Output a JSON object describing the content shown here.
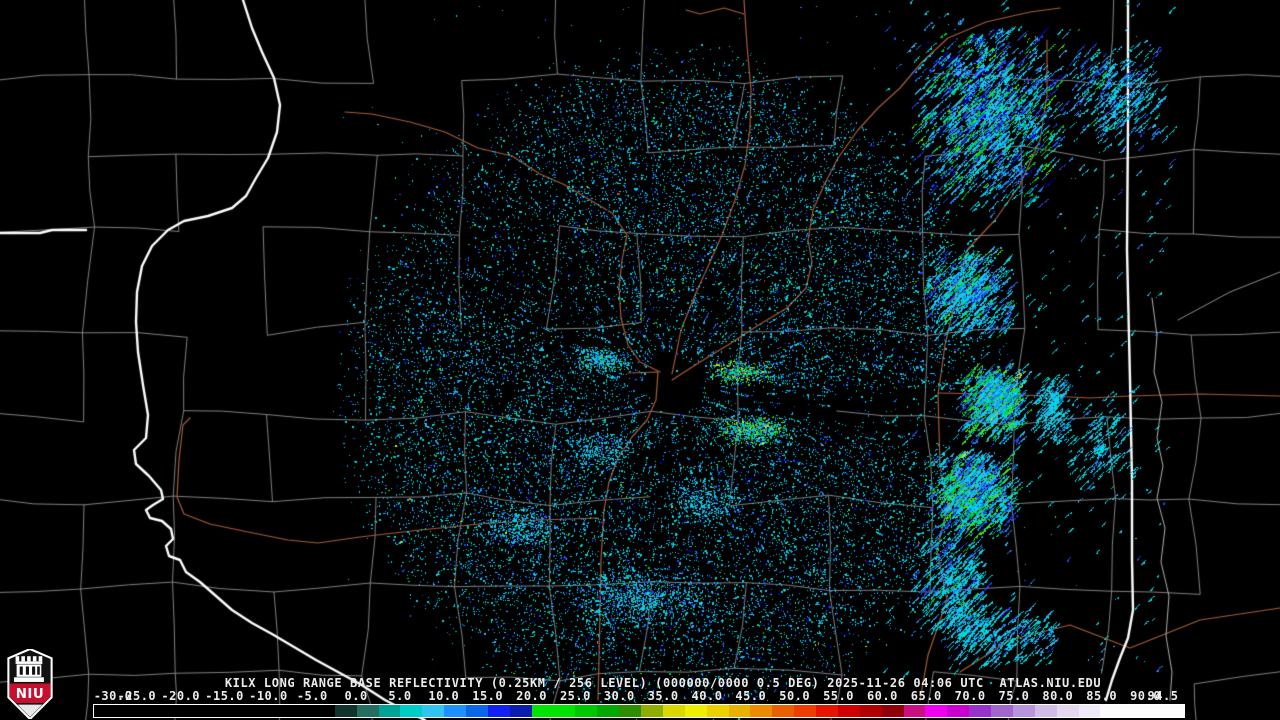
{
  "title_bar": {
    "full_text": "KILX LONG RANGE BASE REFLECTIVITY (0.25KM / 256 LEVEL) (000000/0000 0.5 DEG) 2025-11-26 04:06 UTC  ATLAS.NIU.EDU",
    "radar_id": "KILX",
    "product": "LONG RANGE BASE REFLECTIVITY",
    "resolution": "(0.25KM / 256 LEVEL)",
    "scan": "(000000/0000 0.5 DEG)",
    "timestamp": "2025-11-26 04:06 UTC",
    "source": "ATLAS.NIU.EDU"
  },
  "colorbar": {
    "min": -30,
    "max": 94.5,
    "ticks": [
      {
        "label": "-30.0",
        "value": -30
      },
      {
        "label": "-25.0",
        "value": -25
      },
      {
        "label": "-20.0",
        "value": -20
      },
      {
        "label": "-15.0",
        "value": -15
      },
      {
        "label": "-10.0",
        "value": -10
      },
      {
        "label": "-5.0",
        "value": -5
      },
      {
        "label": "0.0",
        "value": 0
      },
      {
        "label": "5.0",
        "value": 5
      },
      {
        "label": "10.0",
        "value": 10
      },
      {
        "label": "15.0",
        "value": 15
      },
      {
        "label": "20.0",
        "value": 20
      },
      {
        "label": "25.0",
        "value": 25
      },
      {
        "label": "30.0",
        "value": 30
      },
      {
        "label": "35.0",
        "value": 35
      },
      {
        "label": "40.0",
        "value": 40
      },
      {
        "label": "45.0",
        "value": 45
      },
      {
        "label": "50.0",
        "value": 50
      },
      {
        "label": "55.0",
        "value": 55
      },
      {
        "label": "60.0",
        "value": 60
      },
      {
        "label": "65.0",
        "value": 65
      },
      {
        "label": "70.0",
        "value": 70
      },
      {
        "label": "75.0",
        "value": 75
      },
      {
        "label": "80.0",
        "value": 80
      },
      {
        "label": "85.0",
        "value": 85
      },
      {
        "label": "90.0",
        "value": 90
      },
      {
        "label": "94.5",
        "value": 94.5
      }
    ],
    "segments": [
      {
        "from": -30,
        "to": -2.5,
        "color": "#000000"
      },
      {
        "from": -2.5,
        "to": 0,
        "color": "#12332c"
      },
      {
        "from": 0,
        "to": 2.5,
        "color": "#246e60"
      },
      {
        "from": 2.5,
        "to": 5,
        "color": "#00a296"
      },
      {
        "from": 5,
        "to": 7.5,
        "color": "#00cdc8"
      },
      {
        "from": 7.5,
        "to": 10,
        "color": "#30c4f0"
      },
      {
        "from": 10,
        "to": 12.5,
        "color": "#1e90ff"
      },
      {
        "from": 12.5,
        "to": 15,
        "color": "#0b66e8"
      },
      {
        "from": 15,
        "to": 17.5,
        "color": "#1121f0"
      },
      {
        "from": 17.5,
        "to": 20,
        "color": "#0a1dae"
      },
      {
        "from": 20,
        "to": 25,
        "color": "#00e400"
      },
      {
        "from": 25,
        "to": 27.5,
        "color": "#00c800"
      },
      {
        "from": 27.5,
        "to": 30,
        "color": "#00aa00"
      },
      {
        "from": 30,
        "to": 32.5,
        "color": "#2d8f00"
      },
      {
        "from": 32.5,
        "to": 35,
        "color": "#8fae00"
      },
      {
        "from": 35,
        "to": 37.5,
        "color": "#d8d800"
      },
      {
        "from": 37.5,
        "to": 40,
        "color": "#f0ee00"
      },
      {
        "from": 40,
        "to": 42.5,
        "color": "#ecd000"
      },
      {
        "from": 42.5,
        "to": 45,
        "color": "#eab000"
      },
      {
        "from": 45,
        "to": 47.5,
        "color": "#ee8a00"
      },
      {
        "from": 47.5,
        "to": 50,
        "color": "#e86000"
      },
      {
        "from": 50,
        "to": 52.5,
        "color": "#f03c00"
      },
      {
        "from": 52.5,
        "to": 55,
        "color": "#e61400"
      },
      {
        "from": 55,
        "to": 57.5,
        "color": "#d00000"
      },
      {
        "from": 57.5,
        "to": 60,
        "color": "#b00000"
      },
      {
        "from": 60,
        "to": 62.5,
        "color": "#8f0008"
      },
      {
        "from": 62.5,
        "to": 65,
        "color": "#c81080"
      },
      {
        "from": 65,
        "to": 67.5,
        "color": "#f000f0"
      },
      {
        "from": 67.5,
        "to": 70,
        "color": "#cc00cc"
      },
      {
        "from": 70,
        "to": 72.5,
        "color": "#9932cc"
      },
      {
        "from": 72.5,
        "to": 75,
        "color": "#a266cc"
      },
      {
        "from": 75,
        "to": 77.5,
        "color": "#b894dc"
      },
      {
        "from": 77.5,
        "to": 80,
        "color": "#d0bce8"
      },
      {
        "from": 80,
        "to": 82.5,
        "color": "#e4d8f0"
      },
      {
        "from": 82.5,
        "to": 85,
        "color": "#f0eaf8"
      },
      {
        "from": 85,
        "to": 94.5,
        "color": "#fcfcfc"
      }
    ]
  },
  "logo": {
    "text": "NIU",
    "band_color": "#c8102e",
    "outline_color": "#ffffff"
  },
  "map": {
    "background": "#000000",
    "county_line_color": "#8f8f8f",
    "state_line_color": "#ffffff",
    "river_line_color": "#b0b0b0",
    "highway_color": "#a85c38",
    "echo_palette": {
      "cyan": "#00d8e0",
      "teal": "#00b4b4",
      "skyblue": "#33b5f0",
      "dodger": "#1e7ef0",
      "blue": "#2244f0",
      "deepblue": "#0000d8",
      "green": "#00c832",
      "brightgreen": "#44e600",
      "yellow": "#e6e600",
      "orange": "#f08000",
      "red": "#e62e00"
    }
  }
}
